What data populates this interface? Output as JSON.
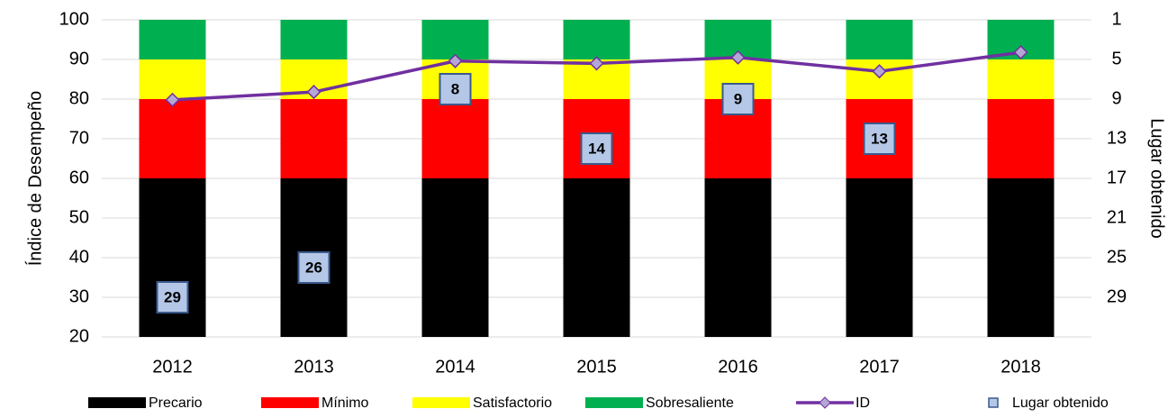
{
  "chart_data": {
    "type": "bar",
    "categories": [
      "2012",
      "2013",
      "2014",
      "2015",
      "2016",
      "2017",
      "2018"
    ],
    "series": [
      {
        "name": "Precario",
        "color": "#000000",
        "values": [
          60,
          60,
          60,
          60,
          60,
          60,
          60
        ]
      },
      {
        "name": "Mínimo",
        "color": "#ff0000",
        "values": [
          20,
          20,
          20,
          20,
          20,
          20,
          20
        ]
      },
      {
        "name": "Satisfactorio",
        "color": "#ffff00",
        "values": [
          10,
          10,
          10,
          10,
          10,
          10,
          10
        ]
      },
      {
        "name": "Sobresaliente",
        "color": "#00b050",
        "values": [
          10,
          10,
          10,
          10,
          10,
          10,
          10
        ]
      },
      {
        "name": "ID",
        "type": "line",
        "color": "#7030a0",
        "values": [
          79.8,
          81.8,
          89.6,
          89.0,
          90.5,
          87.0,
          91.8
        ]
      },
      {
        "name": "Lugar obtenido",
        "type": "scatter",
        "axis": "y2",
        "color": "#b4c7e7",
        "values": [
          29,
          26,
          8,
          14,
          9,
          13,
          null
        ]
      }
    ],
    "ylim": [
      20,
      100
    ],
    "yticks": [
      20,
      30,
      40,
      50,
      60,
      70,
      80,
      90,
      100
    ],
    "y2lim": [
      33,
      1
    ],
    "y2ticks": [
      1,
      5,
      9,
      13,
      17,
      21,
      25,
      29
    ],
    "ylabel": "Índice de Desempeño",
    "y2label": "Lugar obtenido",
    "grid": true,
    "legend": "bottom"
  }
}
